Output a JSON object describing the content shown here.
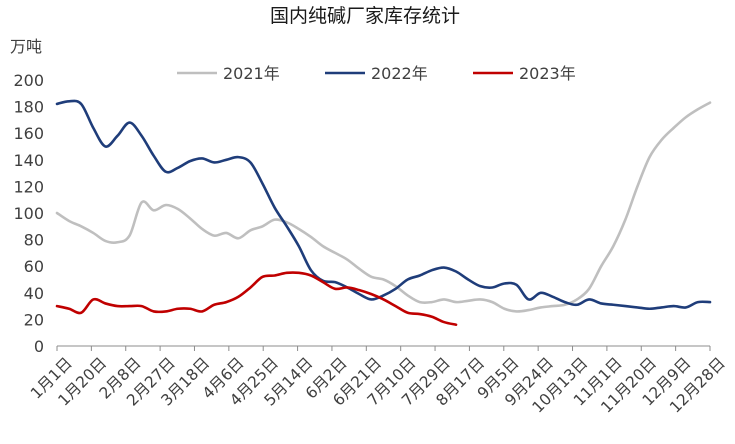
{
  "chart_data": {
    "type": "line",
    "title": "国内纯碱厂家库存统计",
    "unit": "万吨",
    "ylim": [
      0,
      200
    ],
    "yticks": [
      "0",
      "20",
      "40",
      "60",
      "80",
      "100",
      "120",
      "140",
      "160",
      "180",
      "200"
    ],
    "x_tick_labels": [
      "1月1日",
      "1月20日",
      "2月8日",
      "2月27日",
      "3月18日",
      "4月6日",
      "4月25日",
      "5月14日",
      "6月2日",
      "6月21日",
      "7月10日",
      "7月29日",
      "8月17日",
      "9月5日",
      "9月24日",
      "10月13日",
      "11月1日",
      "11月20日",
      "12月9日",
      "12月28日"
    ],
    "grid": false,
    "legend_position": "top",
    "series": [
      {
        "name": "2021年",
        "color": "#bfbfbf",
        "x": [
          0,
          1,
          2,
          3,
          4,
          5,
          6,
          7,
          8,
          9,
          10,
          11,
          12,
          13,
          14,
          15,
          16,
          17,
          18,
          19,
          20,
          21,
          22,
          23,
          24,
          25,
          26,
          27,
          28,
          29,
          30,
          31,
          32,
          33,
          34,
          35,
          36,
          37,
          38,
          39,
          40,
          41,
          42,
          43,
          44,
          45,
          46,
          47,
          48,
          49,
          50,
          51,
          52,
          53,
          54
        ],
        "y": [
          100,
          94,
          90,
          85,
          79,
          78,
          83,
          108,
          102,
          106,
          103,
          96,
          88,
          83,
          85,
          81,
          87,
          90,
          95,
          93,
          88,
          82,
          75,
          70,
          65,
          58,
          52,
          50,
          45,
          38,
          33,
          33,
          35,
          33,
          34,
          35,
          33,
          28,
          26,
          27,
          29,
          30,
          31,
          35,
          43,
          60,
          75,
          95,
          120,
          142,
          155,
          164,
          172,
          178,
          183
        ]
      },
      {
        "name": "2022年",
        "color": "#1f3d7a",
        "x": [
          0,
          1,
          2,
          3,
          4,
          5,
          6,
          7,
          8,
          9,
          10,
          11,
          12,
          13,
          14,
          15,
          16,
          17,
          18,
          19,
          20,
          21,
          22,
          23,
          24,
          25,
          26,
          27,
          28,
          29,
          30,
          31,
          32,
          33,
          34,
          35,
          36,
          37,
          38,
          39,
          40,
          41,
          42,
          43,
          44,
          45,
          46,
          47,
          48,
          49,
          50,
          51,
          52,
          53,
          54
        ],
        "y": [
          182,
          184,
          182,
          164,
          150,
          158,
          168,
          158,
          143,
          131,
          134,
          139,
          141,
          138,
          140,
          142,
          138,
          122,
          104,
          90,
          75,
          57,
          49,
          48,
          44,
          39,
          35,
          38,
          43,
          50,
          53,
          57,
          59,
          56,
          50,
          45,
          44,
          47,
          46,
          35,
          40,
          37,
          33,
          31,
          35,
          32,
          31,
          30,
          29,
          28,
          29,
          30,
          29,
          33,
          33
        ]
      },
      {
        "name": "2023年",
        "color": "#c00000",
        "x": [
          0,
          1,
          2,
          3,
          4,
          5,
          6,
          7,
          8,
          9,
          10,
          11,
          12,
          13,
          14,
          15,
          16,
          17,
          18,
          19,
          20,
          21,
          22,
          23,
          24,
          25,
          26,
          27,
          28,
          29,
          30,
          31,
          32,
          33
        ],
        "y": [
          30,
          28,
          25,
          35,
          32,
          30,
          30,
          30,
          26,
          26,
          28,
          28,
          26,
          31,
          33,
          37,
          44,
          52,
          53,
          55,
          55,
          53,
          48,
          43,
          44,
          42,
          39,
          35,
          30,
          25,
          24,
          22,
          18,
          16
        ]
      }
    ]
  }
}
